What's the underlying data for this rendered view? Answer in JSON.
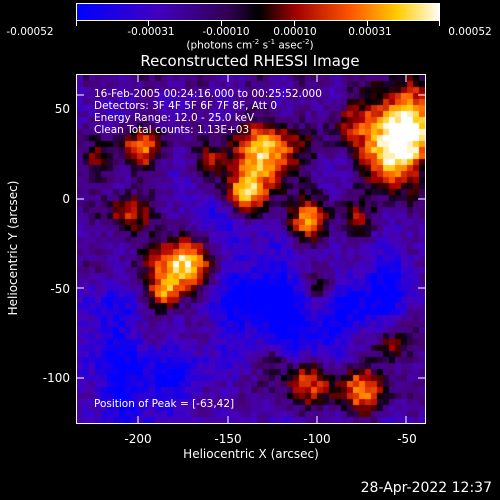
{
  "colorbar": {
    "tick_labels": [
      "-0.00052",
      "-0.00031",
      "-0.00010",
      "0.00010",
      "0.00031",
      "0.00052"
    ],
    "units_prefix": "(photons cm",
    "units_exp1": "-2",
    "units_mid1": " s",
    "units_exp2": "-1",
    "units_mid2": " asec",
    "units_exp3": "-2",
    "units_suffix": ")",
    "colors": [
      "#0000ff",
      "#5a00a8",
      "#000000",
      "#aa0000",
      "#ff6600",
      "#ffcc00",
      "#ffffff"
    ]
  },
  "title": "Reconstructed RHESSI Image",
  "annotations": {
    "time": "16-Feb-2005 00:24:16.000 to 00:25:52.000",
    "detectors": "Detectors: 3F 4F 5F 6F 7F 8F, Att 0",
    "energy": "Energy Range: 12.0 - 25.0 keV",
    "clean": "Clean     Total counts: 1.13E+03",
    "peak": "Position of Peak = [-63,42]"
  },
  "axes": {
    "xlabel": "Heliocentric X (arcsec)",
    "ylabel": "Heliocentric Y (arcsec)",
    "xticks": [
      "-200",
      "-150",
      "-100",
      "-50"
    ],
    "yticks": [
      "50",
      "0",
      "-50",
      "-100"
    ],
    "xrange": [
      -233,
      -37
    ],
    "yrange": [
      -123,
      73
    ]
  },
  "footer": {
    "timestamp": "28-Apr-2022 12:37"
  }
}
